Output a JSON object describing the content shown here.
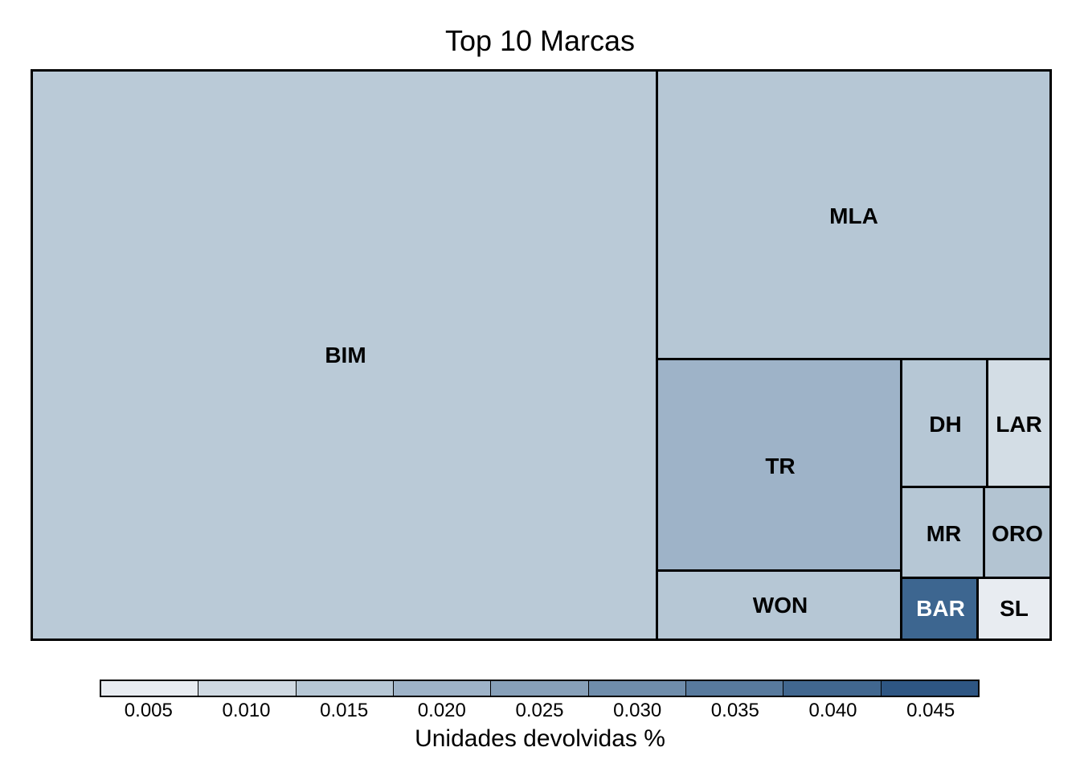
{
  "chart_data": {
    "type": "treemap",
    "title": "Top 10 Marcas",
    "legend_title": "Unidades devolvidas %",
    "legend_ticks": [
      "0.005",
      "0.010",
      "0.015",
      "0.020",
      "0.025",
      "0.030",
      "0.035",
      "0.040",
      "0.045"
    ],
    "legend_colors": [
      "#e8ecf1",
      "#cfd9e2",
      "#b6c7d5",
      "#9eb3c8",
      "#87a0b9",
      "#6f8dab",
      "#587a9d",
      "#41678f",
      "#2e5683"
    ],
    "items": [
      {
        "label": "BIM",
        "color_value": 0.014,
        "color": "#bacad7"
      },
      {
        "label": "MLA",
        "color_value": 0.015,
        "color": "#b6c7d5"
      },
      {
        "label": "TR",
        "color_value": 0.021,
        "color": "#9eb3c8"
      },
      {
        "label": "WON",
        "color_value": 0.015,
        "color": "#b6c7d5"
      },
      {
        "label": "DH",
        "color_value": 0.015,
        "color": "#b6c7d5"
      },
      {
        "label": "LAR",
        "color_value": 0.009,
        "color": "#d3dde5"
      },
      {
        "label": "MR",
        "color_value": 0.015,
        "color": "#b6c7d5"
      },
      {
        "label": "ORO",
        "color_value": 0.016,
        "color": "#b3c4d2"
      },
      {
        "label": "BAR",
        "color_value": 0.047,
        "color": "#3d6690"
      },
      {
        "label": "SL",
        "color_value": 0.005,
        "color": "#e8ecf1"
      }
    ]
  }
}
